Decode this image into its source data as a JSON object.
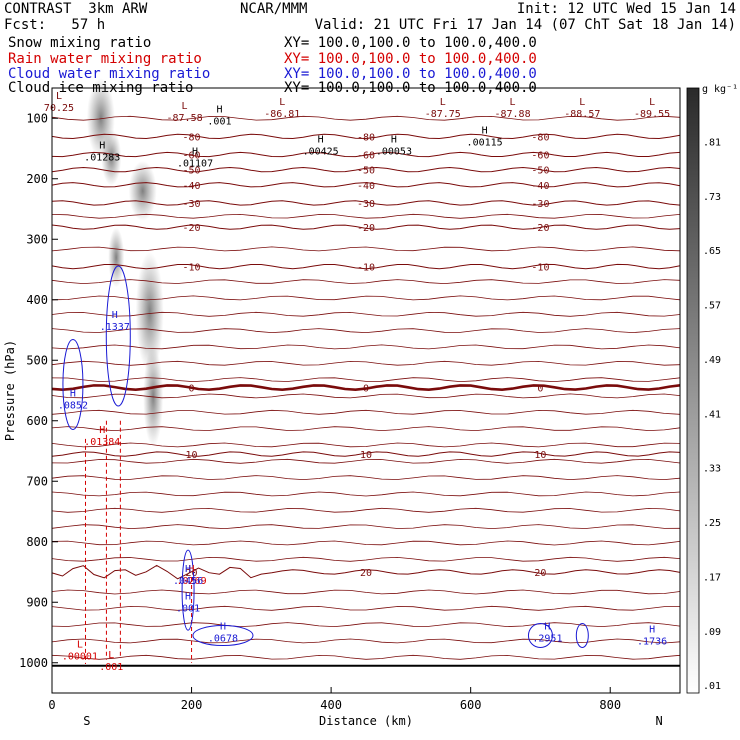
{
  "header": {
    "left_line1": "CONTRAST  3km ARW",
    "left_line2": "Fcst:   57 h",
    "center_line1": "NCAR/MMM",
    "right_line1": "Init: 12 UTC Wed 15 Jan 14",
    "right_line2": "Valid: 21 UTC Fri 17 Jan 14 (07 ChT Sat 18 Jan 14)"
  },
  "fields": [
    {
      "name": "Snow mixing ratio",
      "xy": "XY= 100.0,100.0 to 100.0,400.0",
      "color": "#000000"
    },
    {
      "name": "Rain water mixing ratio",
      "xy": "XY= 100.0,100.0 to 100.0,400.0",
      "color": "#d40000"
    },
    {
      "name": "Cloud water mixing ratio",
      "xy": "XY= 100.0,100.0 to 100.0,400.0",
      "color": "#1a1ad4"
    },
    {
      "name": "Cloud ice mixing ratio",
      "xy": "XY= 100.0,100.0 to 100.0,400.0",
      "color": "#000000"
    }
  ],
  "chart_data": {
    "type": "cross-section",
    "xlabel": "Distance (km)",
    "ylabel": "Pressure (hPa)",
    "xlim": [
      0,
      900
    ],
    "ylim": [
      1050,
      50
    ],
    "x_ticks": [
      "0",
      "200",
      "400",
      "600",
      "800"
    ],
    "x_tick_values": [
      0,
      200,
      400,
      600,
      800
    ],
    "y_ticks": [
      "100",
      "200",
      "300",
      "400",
      "500",
      "600",
      "700",
      "800",
      "900",
      "1000"
    ],
    "y_tick_values": [
      100,
      200,
      300,
      400,
      500,
      600,
      700,
      800,
      900,
      1000
    ],
    "endpoints": {
      "left": "S",
      "right": "N"
    },
    "colorbar": {
      "unit": "g kg⁻¹",
      "labels": [
        ".81",
        ".73",
        ".65",
        ".57",
        ".49",
        ".41",
        ".33",
        ".25",
        ".17",
        ".09",
        ".01"
      ],
      "values": [
        0.81,
        0.73,
        0.65,
        0.57,
        0.49,
        0.41,
        0.33,
        0.25,
        0.17,
        0.09,
        0.01
      ]
    },
    "temperature_isotherms": [
      {
        "label": "-80",
        "p": 130
      },
      {
        "label": "-60",
        "p": 160
      },
      {
        "label": "-50",
        "p": 185
      },
      {
        "label": "-40",
        "p": 210
      },
      {
        "label": "-30",
        "p": 240
      },
      {
        "label": "-20",
        "p": 280
      },
      {
        "label": "-10",
        "p": 345
      },
      {
        "label": "0",
        "p": 545
      },
      {
        "label": "10",
        "p": 655
      },
      {
        "label": "20",
        "p": 850
      }
    ],
    "temperature_extrema": [
      {
        "kind": "L",
        "value": "70.25",
        "x": 10,
        "p": 78
      },
      {
        "kind": "L",
        "value": "-87.58",
        "x": 190,
        "p": 95
      },
      {
        "kind": "L",
        "value": "-86.81",
        "x": 330,
        "p": 88
      },
      {
        "kind": "L",
        "value": "-87.75",
        "x": 560,
        "p": 88
      },
      {
        "kind": "L",
        "value": "-87.88",
        "x": 660,
        "p": 88
      },
      {
        "kind": "L",
        "value": "-88.57",
        "x": 760,
        "p": 88
      },
      {
        "kind": "L",
        "value": "-89.55",
        "x": 860,
        "p": 88
      }
    ],
    "snow_ice_extrema": [
      {
        "kind": "H",
        "value": ".001",
        "x": 240,
        "p": 100
      },
      {
        "kind": "H",
        "value": ".01283",
        "x": 72,
        "p": 160
      },
      {
        "kind": "H",
        "value": ".01107",
        "x": 205,
        "p": 170
      },
      {
        "kind": "H",
        "value": ".00425",
        "x": 385,
        "p": 150
      },
      {
        "kind": "H",
        "value": ".00053",
        "x": 490,
        "p": 150
      },
      {
        "kind": "H",
        "value": ".00115",
        "x": 620,
        "p": 135
      }
    ],
    "rain_extrema": [
      {
        "kind": "H",
        "value": ".01384",
        "x": 72,
        "p": 630
      },
      {
        "kind": "H",
        "value": ".0269",
        "x": 200,
        "p": 860
      },
      {
        "kind": "L",
        "value": ".00001",
        "x": 40,
        "p": 985
      },
      {
        "kind": "L",
        "value": ".001",
        "x": 85,
        "p": 1002
      }
    ],
    "cloud_water_extrema": [
      {
        "kind": "H",
        "value": ".1337",
        "x": 90,
        "p": 440
      },
      {
        "kind": "H",
        "value": ".0852",
        "x": 30,
        "p": 570
      },
      {
        "kind": "H",
        "value": ".0456",
        "x": 195,
        "p": 860
      },
      {
        "kind": "H",
        "value": ".001",
        "x": 195,
        "p": 905
      },
      {
        "kind": "H",
        "value": ".0678",
        "x": 245,
        "p": 955
      },
      {
        "kind": "H",
        "value": ".2951",
        "x": 710,
        "p": 955
      },
      {
        "kind": "H",
        "value": ".1736",
        "x": 860,
        "p": 960
      }
    ]
  }
}
